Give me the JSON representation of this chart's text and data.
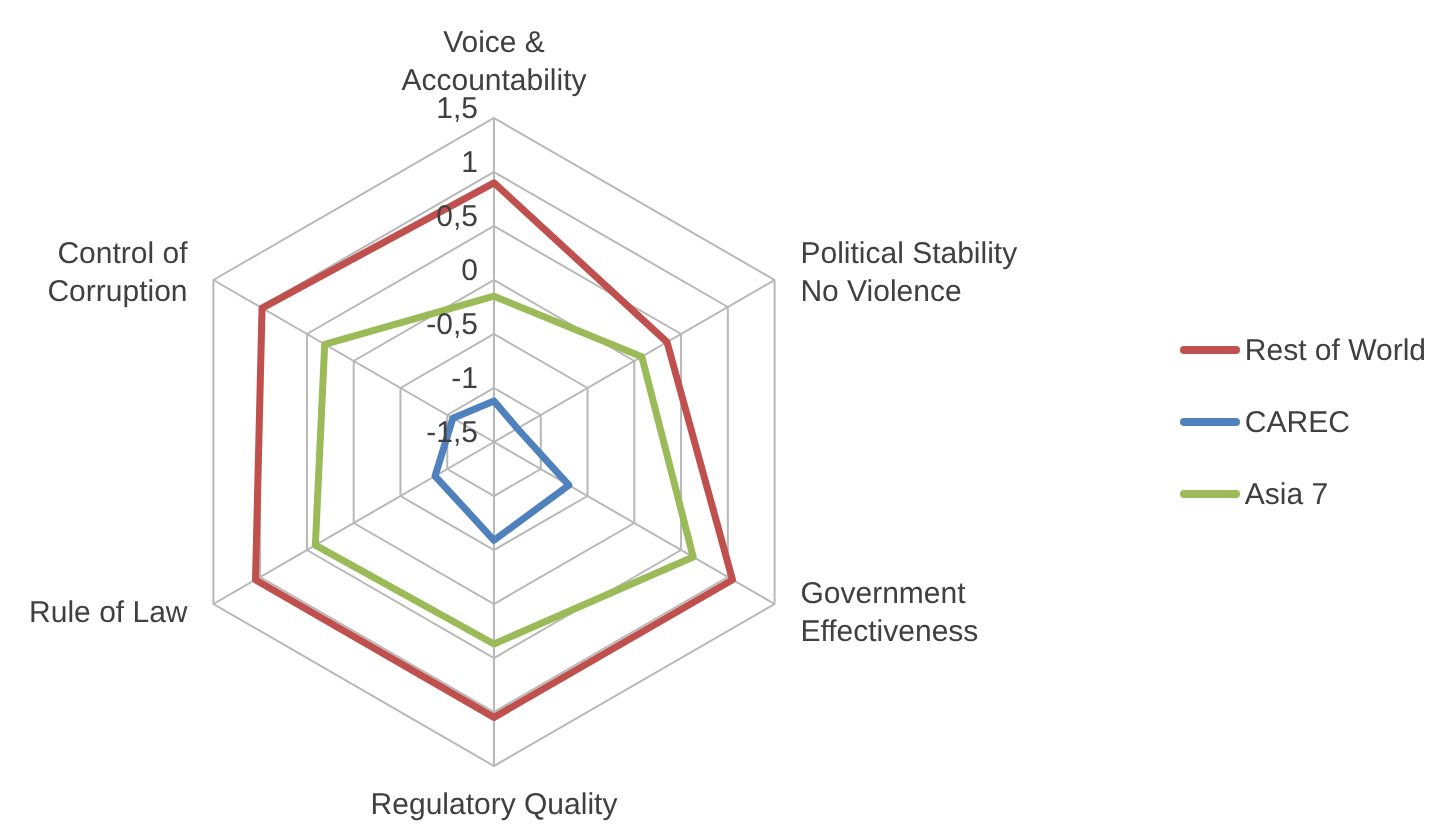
{
  "chart_data": {
    "type": "radar",
    "categories": [
      "Voice & Accountability",
      "Political Stability No Violence",
      "Government Effectiveness",
      "Regulatory Quality",
      "Rule of Law",
      "Control of Corruption"
    ],
    "series": [
      {
        "name": "Rest of World",
        "color": "#c0504d",
        "values": [
          0.9,
          0.35,
          1.05,
          1.05,
          1.05,
          0.98
        ]
      },
      {
        "name": "CAREC",
        "color": "#4f81bd",
        "values": [
          -1.12,
          -1.25,
          -0.7,
          -0.59,
          -0.87,
          -1.06
        ]
      },
      {
        "name": "Asia 7",
        "color": "#9bbb59",
        "values": [
          -0.15,
          0.08,
          0.63,
          0.37,
          0.41,
          0.31
        ]
      }
    ],
    "ylim": [
      -1.5,
      1.5
    ],
    "yticks": [
      {
        "value": -1.5,
        "label": "-1,5"
      },
      {
        "value": -1,
        "label": "-1"
      },
      {
        "value": -0.5,
        "label": "-0,5"
      },
      {
        "value": 0,
        "label": "0"
      },
      {
        "value": 0.5,
        "label": "0,5"
      },
      {
        "value": 1,
        "label": "1"
      },
      {
        "value": 1.5,
        "label": "1,5"
      }
    ],
    "grid": true,
    "legend": "right",
    "marker": "none"
  }
}
